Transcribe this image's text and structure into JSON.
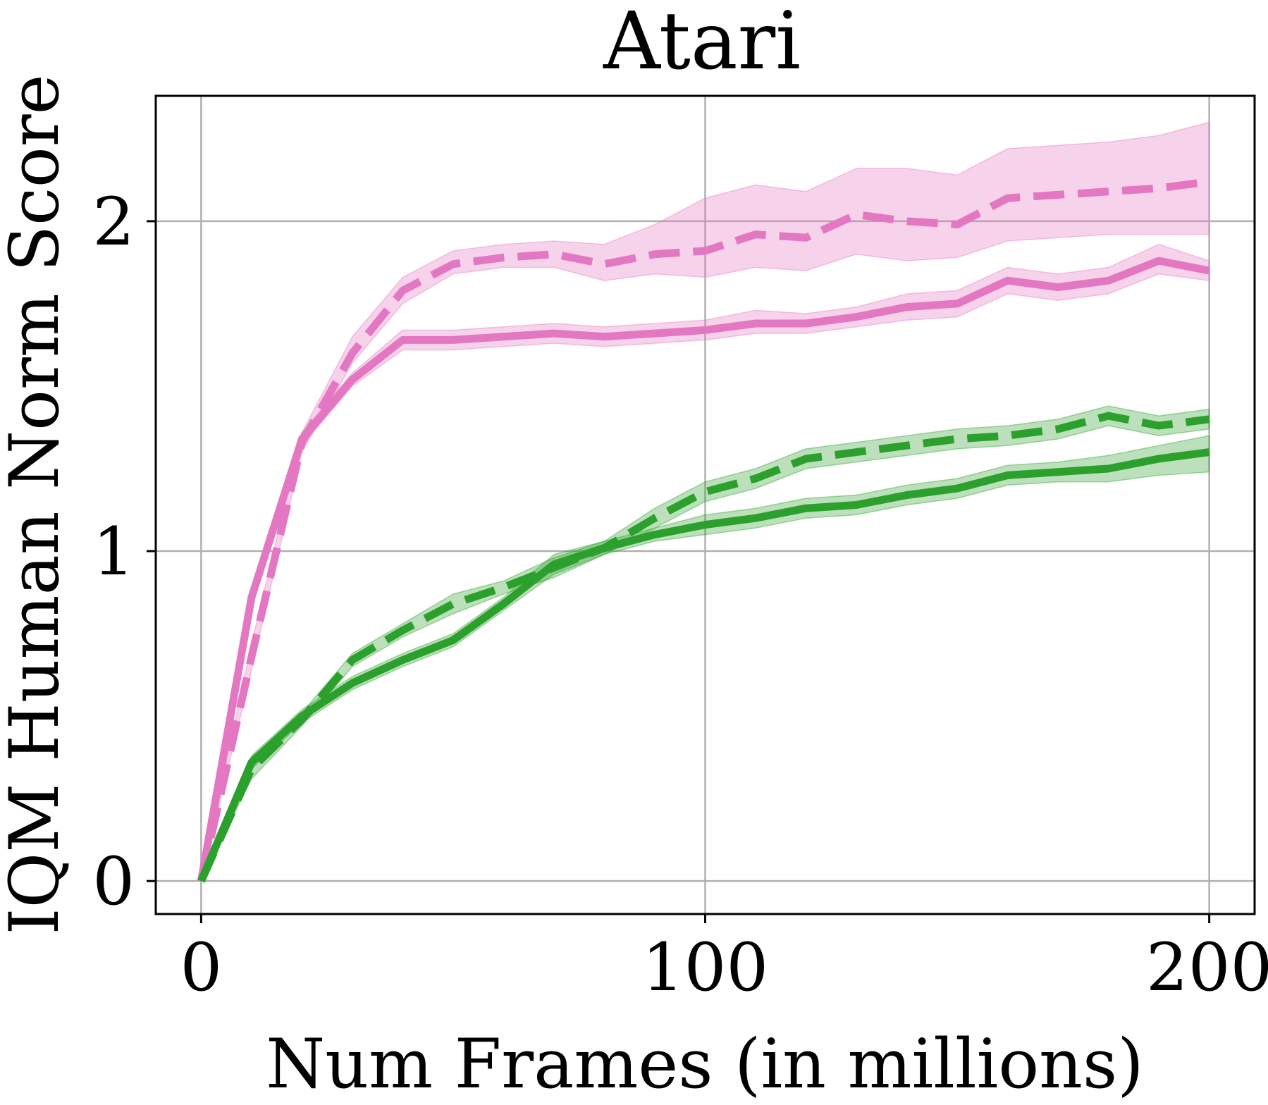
{
  "chart_data": {
    "type": "line",
    "title": "Atari",
    "xlabel": "Num Frames (in millions)",
    "ylabel": "IQM Human Norm Score",
    "xlim": [
      -9,
      209
    ],
    "ylim": [
      -0.1,
      2.38
    ],
    "xticks": [
      0,
      100,
      200
    ],
    "yticks": [
      0,
      1,
      2
    ],
    "grid": true,
    "legend": "none",
    "x": [
      0,
      10,
      20,
      30,
      40,
      50,
      60,
      70,
      80,
      90,
      100,
      110,
      120,
      130,
      140,
      150,
      160,
      170,
      180,
      190,
      200
    ],
    "series": [
      {
        "color": "#e377c2",
        "linestyle": "dashed",
        "values": [
          0.0,
          0.68,
          1.33,
          1.6,
          1.79,
          1.87,
          1.89,
          1.9,
          1.87,
          1.9,
          1.91,
          1.96,
          1.95,
          2.02,
          2.0,
          1.99,
          2.07,
          2.08,
          2.09,
          2.1,
          2.12
        ],
        "lower": [
          0.0,
          0.64,
          1.3,
          1.57,
          1.75,
          1.84,
          1.86,
          1.86,
          1.82,
          1.84,
          1.83,
          1.86,
          1.85,
          1.9,
          1.88,
          1.89,
          1.94,
          1.95,
          1.96,
          1.96,
          1.96
        ],
        "upper": [
          0.0,
          0.72,
          1.36,
          1.65,
          1.83,
          1.91,
          1.93,
          1.94,
          1.93,
          1.99,
          2.07,
          2.11,
          2.09,
          2.16,
          2.16,
          2.14,
          2.22,
          2.23,
          2.24,
          2.26,
          2.3
        ]
      },
      {
        "color": "#e377c2",
        "linestyle": "solid",
        "values": [
          0.0,
          0.86,
          1.34,
          1.52,
          1.64,
          1.64,
          1.65,
          1.66,
          1.65,
          1.66,
          1.67,
          1.69,
          1.69,
          1.71,
          1.74,
          1.75,
          1.82,
          1.8,
          1.82,
          1.88,
          1.85
        ],
        "lower": [
          0.0,
          0.84,
          1.32,
          1.5,
          1.61,
          1.61,
          1.62,
          1.63,
          1.62,
          1.63,
          1.64,
          1.66,
          1.66,
          1.68,
          1.7,
          1.71,
          1.78,
          1.76,
          1.78,
          1.84,
          1.82
        ],
        "upper": [
          0.0,
          0.88,
          1.36,
          1.54,
          1.67,
          1.67,
          1.68,
          1.69,
          1.68,
          1.69,
          1.7,
          1.73,
          1.72,
          1.74,
          1.78,
          1.79,
          1.86,
          1.84,
          1.86,
          1.93,
          1.88
        ]
      },
      {
        "color": "#2ca02c",
        "linestyle": "dashed",
        "values": [
          0.0,
          0.34,
          0.49,
          0.67,
          0.76,
          0.84,
          0.89,
          0.95,
          1.01,
          1.1,
          1.18,
          1.22,
          1.28,
          1.3,
          1.32,
          1.34,
          1.35,
          1.37,
          1.41,
          1.38,
          1.4
        ],
        "lower": [
          0.0,
          0.31,
          0.47,
          0.65,
          0.74,
          0.81,
          0.87,
          0.92,
          0.99,
          1.07,
          1.15,
          1.19,
          1.25,
          1.27,
          1.29,
          1.31,
          1.32,
          1.34,
          1.38,
          1.35,
          1.37
        ],
        "upper": [
          0.0,
          0.37,
          0.51,
          0.69,
          0.78,
          0.87,
          0.91,
          0.98,
          1.03,
          1.13,
          1.21,
          1.25,
          1.31,
          1.33,
          1.35,
          1.37,
          1.38,
          1.4,
          1.44,
          1.41,
          1.43
        ]
      },
      {
        "color": "#2ca02c",
        "linestyle": "solid",
        "values": [
          0.0,
          0.36,
          0.5,
          0.6,
          0.67,
          0.73,
          0.84,
          0.96,
          1.01,
          1.05,
          1.08,
          1.1,
          1.13,
          1.14,
          1.17,
          1.19,
          1.23,
          1.24,
          1.25,
          1.28,
          1.3
        ],
        "lower": [
          0.0,
          0.34,
          0.48,
          0.58,
          0.65,
          0.71,
          0.82,
          0.93,
          0.99,
          1.03,
          1.05,
          1.07,
          1.1,
          1.11,
          1.14,
          1.16,
          1.2,
          1.21,
          1.21,
          1.23,
          1.24
        ],
        "upper": [
          0.0,
          0.38,
          0.52,
          0.62,
          0.69,
          0.75,
          0.86,
          0.99,
          1.03,
          1.07,
          1.11,
          1.13,
          1.16,
          1.17,
          1.2,
          1.22,
          1.26,
          1.27,
          1.29,
          1.32,
          1.35
        ]
      }
    ]
  }
}
